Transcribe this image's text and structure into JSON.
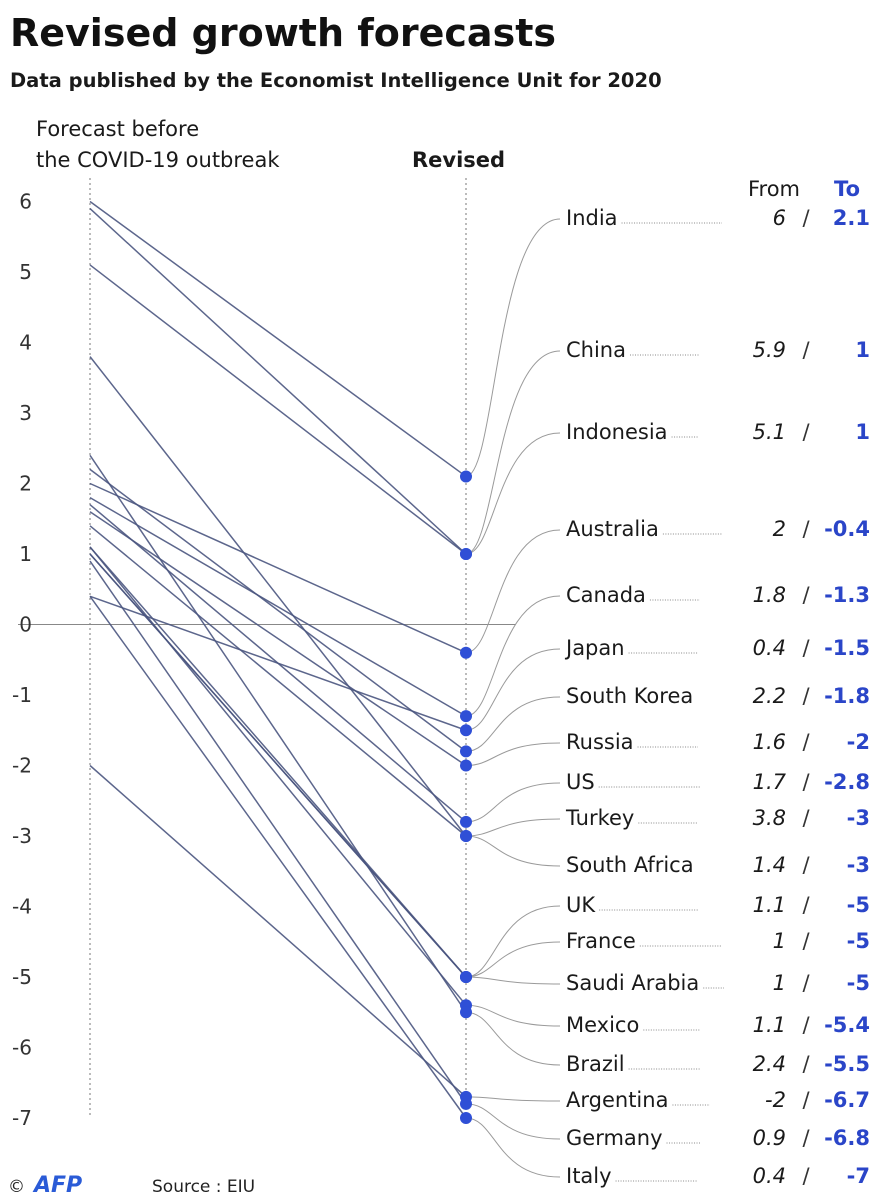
{
  "header": {
    "title": "Revised growth forecasts",
    "subtitle": "Data published by the Economist Intelligence Unit for 2020"
  },
  "columns": {
    "before_line1": "Forecast before",
    "before_line2": "the COVID-19 outbreak",
    "revised": "Revised",
    "from": "From",
    "to": "To"
  },
  "footer": {
    "copyright": "©",
    "logo": "AFP",
    "source": "Source : EIU"
  },
  "colors": {
    "accent": "#2a45c8",
    "line": "#4a5580",
    "dot": "#2f4fd6"
  },
  "chart_data": {
    "type": "slope",
    "title": "Revised growth forecasts",
    "subtitle": "Data published by the Economist Intelligence Unit for 2020",
    "ylim": [
      -7,
      6
    ],
    "yticks": [
      6,
      5,
      4,
      3,
      2,
      1,
      0,
      -1,
      -2,
      -3,
      -4,
      -5,
      -6,
      -7
    ],
    "tick_labels": [
      "6",
      "5",
      "4",
      "3",
      "2",
      "1",
      "0",
      "-1",
      "-2",
      "-3",
      "-4",
      "-5",
      "-6",
      "-7"
    ],
    "series": [
      {
        "country": "India",
        "from": 6,
        "from_label": "6",
        "to": 2.1,
        "to_label": "2.1"
      },
      {
        "country": "China",
        "from": 5.9,
        "from_label": "5.9",
        "to": 1,
        "to_label": "1"
      },
      {
        "country": "Indonesia",
        "from": 5.1,
        "from_label": "5.1",
        "to": 1,
        "to_label": "1"
      },
      {
        "country": "Australia",
        "from": 2,
        "from_label": "2",
        "to": -0.4,
        "to_label": "-0.4"
      },
      {
        "country": "Canada",
        "from": 1.8,
        "from_label": "1.8",
        "to": -1.3,
        "to_label": "-1.3"
      },
      {
        "country": "Japan",
        "from": 0.4,
        "from_label": "0.4",
        "to": -1.5,
        "to_label": "-1.5"
      },
      {
        "country": "South Korea",
        "from": 2.2,
        "from_label": "2.2",
        "to": -1.8,
        "to_label": "-1.8"
      },
      {
        "country": "Russia",
        "from": 1.6,
        "from_label": "1.6",
        "to": -2,
        "to_label": "-2"
      },
      {
        "country": "US",
        "from": 1.7,
        "from_label": "1.7",
        "to": -2.8,
        "to_label": "-2.8"
      },
      {
        "country": "Turkey",
        "from": 3.8,
        "from_label": "3.8",
        "to": -3,
        "to_label": "-3"
      },
      {
        "country": "South Africa",
        "from": 1.4,
        "from_label": "1.4",
        "to": -3,
        "to_label": "-3"
      },
      {
        "country": "UK",
        "from": 1.1,
        "from_label": "1.1",
        "to": -5,
        "to_label": "-5"
      },
      {
        "country": "France",
        "from": 1,
        "from_label": "1",
        "to": -5,
        "to_label": "-5"
      },
      {
        "country": "Saudi Arabia",
        "from": 1,
        "from_label": "1",
        "to": -5,
        "to_label": "-5"
      },
      {
        "country": "Mexico",
        "from": 1.1,
        "from_label": "1.1",
        "to": -5.4,
        "to_label": "-5.4"
      },
      {
        "country": "Brazil",
        "from": 2.4,
        "from_label": "2.4",
        "to": -5.5,
        "to_label": "-5.5"
      },
      {
        "country": "Argentina",
        "from": -2,
        "from_label": "-2",
        "to": -6.7,
        "to_label": "-6.7"
      },
      {
        "country": "Germany",
        "from": 0.9,
        "from_label": "0.9",
        "to": -6.8,
        "to_label": "-6.8"
      },
      {
        "country": "Italy",
        "from": 0.4,
        "from_label": "0.4",
        "to": -7,
        "to_label": "-7"
      }
    ]
  }
}
